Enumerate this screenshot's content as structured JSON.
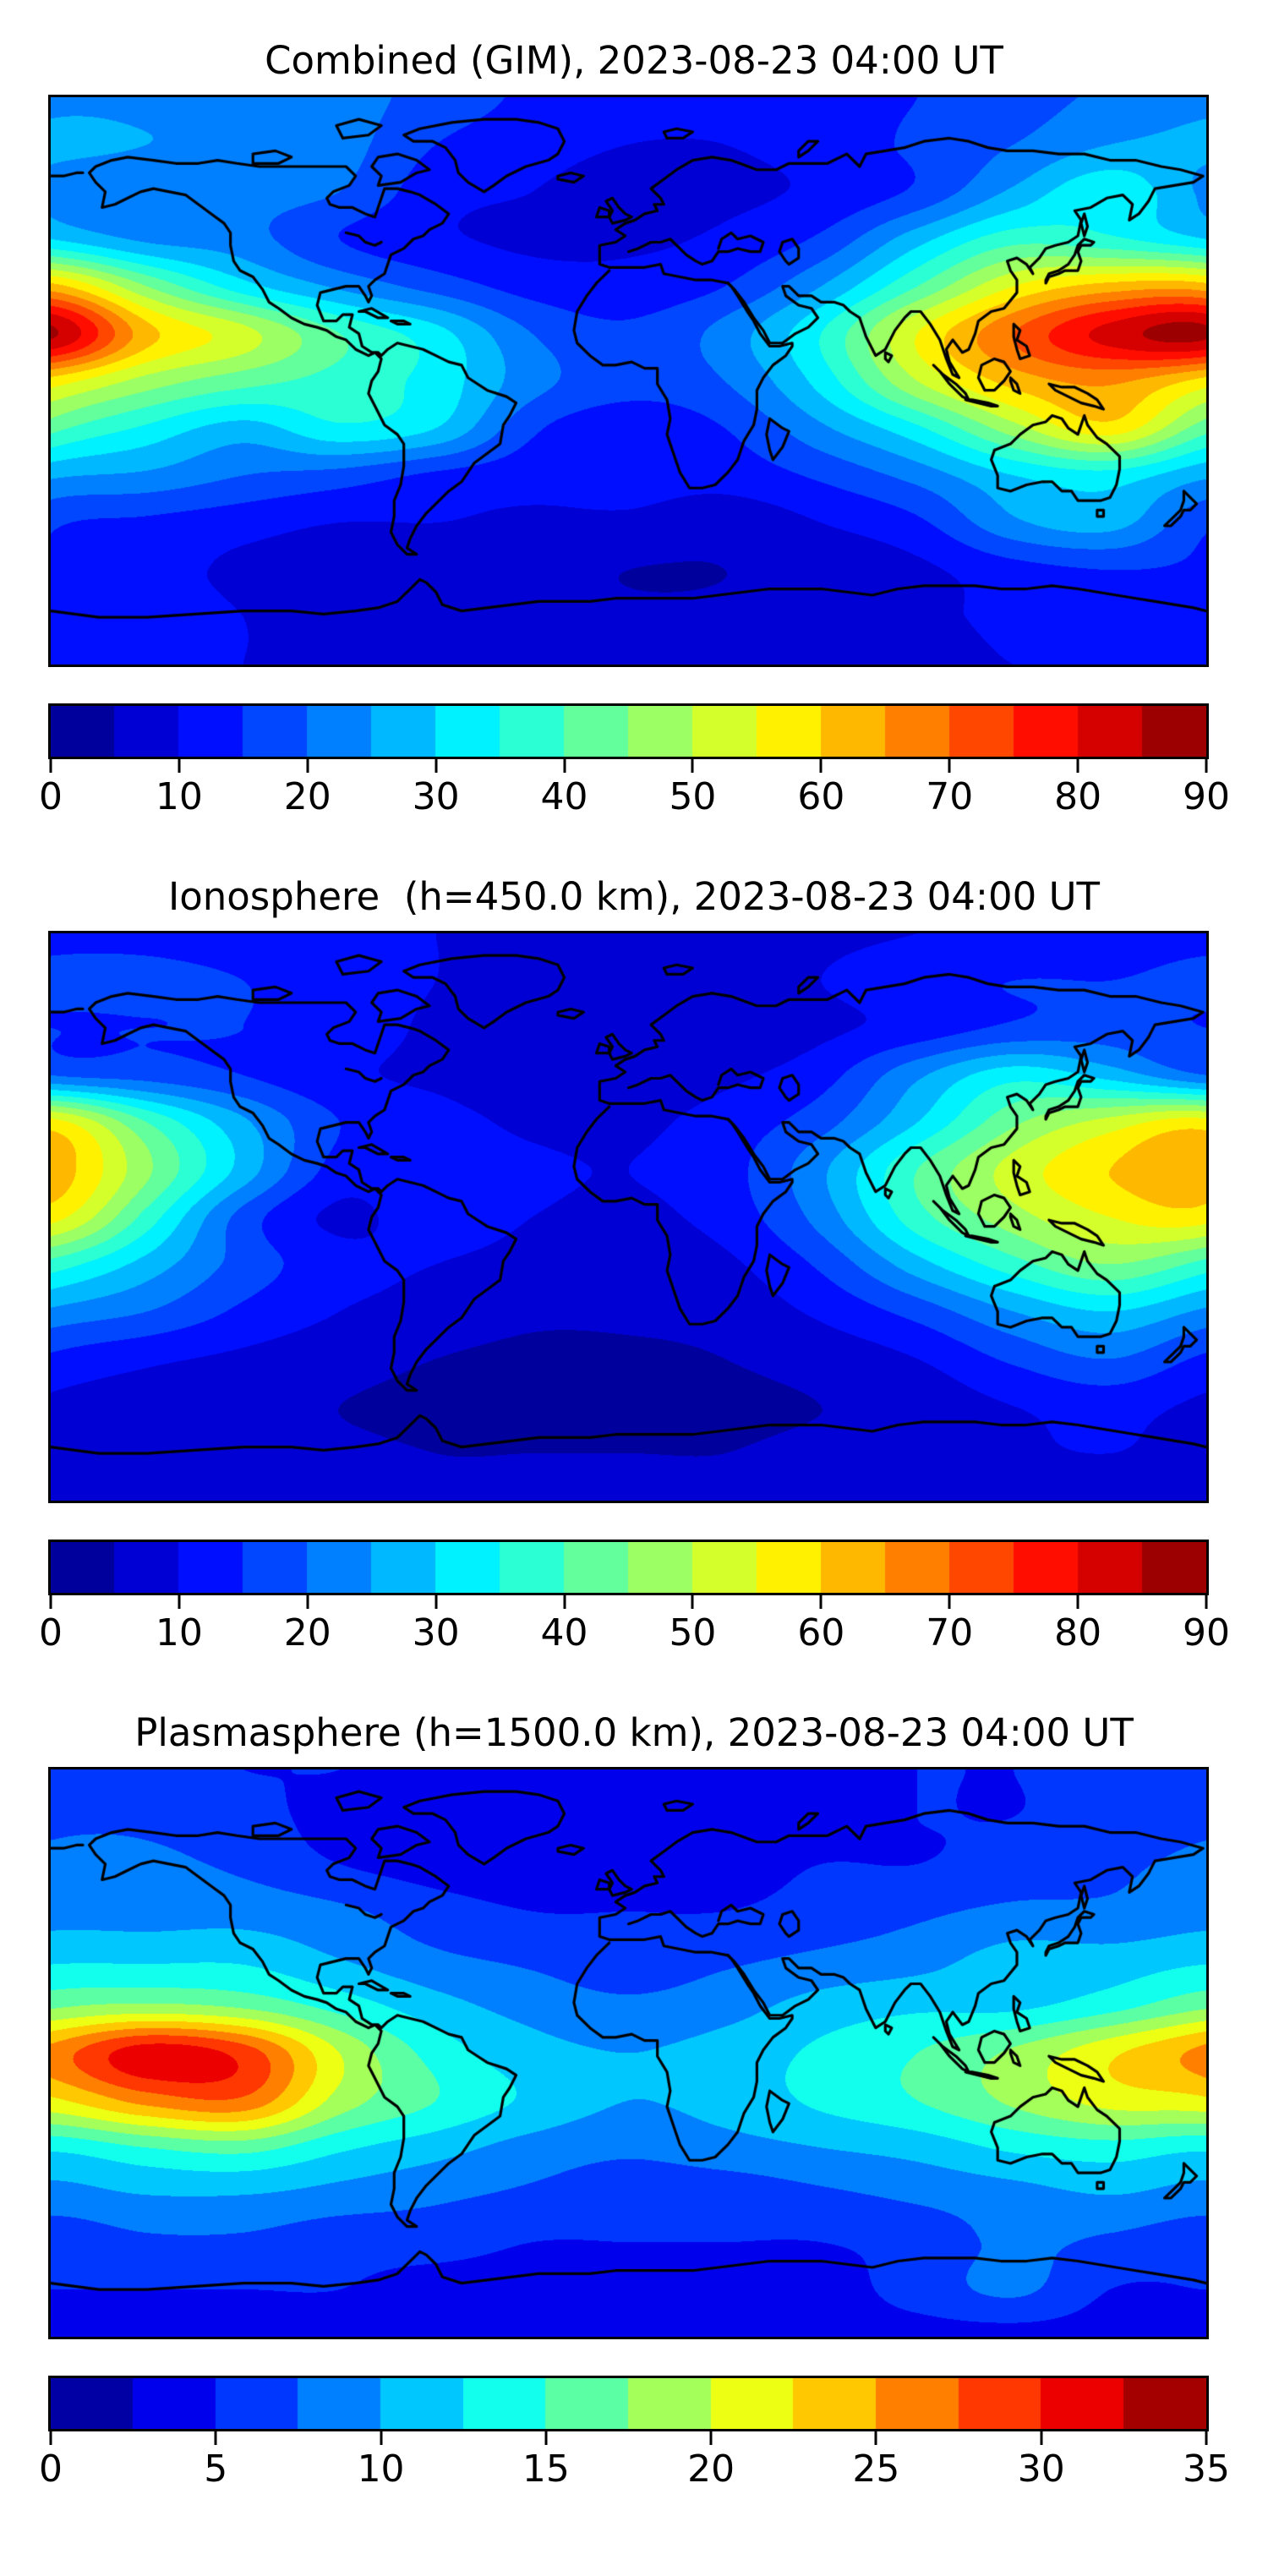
{
  "figure": {
    "background_color": "#ffffff",
    "coastline_color": "#000000",
    "colormap": "jet"
  },
  "chart_data": {
    "type": "heatmap",
    "projection": "equirectangular",
    "lon_range": [
      -180,
      180
    ],
    "lat_range": [
      -90,
      90
    ],
    "grid_on": false,
    "panels": [
      {
        "title": "Combined (GIM), 2023-08-23 04:00 UT",
        "vmin": 0,
        "vmax": 90,
        "level_step": 5,
        "colorbar_ticks": [
          0,
          10,
          20,
          30,
          40,
          50,
          60,
          70,
          80,
          90
        ],
        "grid_lons": [
          -180,
          -150,
          -120,
          -90,
          -60,
          -30,
          0,
          30,
          60,
          90,
          120,
          150,
          180
        ],
        "grid_lats": [
          90,
          75,
          60,
          45,
          30,
          15,
          0,
          -15,
          -30,
          -45,
          -60,
          -75,
          -90
        ],
        "tec_values": [
          [
            24,
            24,
            23,
            22,
            18,
            14,
            12,
            12,
            13,
            15,
            18,
            21,
            24
          ],
          [
            26,
            25,
            24,
            22,
            15,
            12,
            10,
            10,
            12,
            16,
            20,
            25,
            26
          ],
          [
            24,
            22,
            22,
            20,
            12,
            10,
            8,
            9,
            11,
            16,
            26,
            34,
            24
          ],
          [
            30,
            24,
            22,
            15,
            11,
            9,
            9,
            11,
            16,
            28,
            38,
            36,
            30
          ],
          [
            62,
            45,
            32,
            24,
            18,
            13,
            12,
            15,
            25,
            40,
            55,
            62,
            62
          ],
          [
            86,
            62,
            52,
            40,
            32,
            20,
            16,
            22,
            35,
            55,
            70,
            82,
            86
          ],
          [
            58,
            48,
            42,
            38,
            33,
            22,
            17,
            20,
            32,
            50,
            62,
            66,
            58
          ],
          [
            42,
            34,
            28,
            34,
            30,
            16,
            12,
            15,
            24,
            34,
            48,
            58,
            42
          ],
          [
            26,
            24,
            20,
            18,
            14,
            12,
            12,
            12,
            16,
            22,
            30,
            33,
            26
          ],
          [
            16,
            14,
            12,
            10,
            10,
            9,
            9,
            7,
            10,
            14,
            24,
            27,
            16
          ],
          [
            14,
            12,
            9,
            8,
            8,
            7,
            5,
            5,
            7,
            9,
            13,
            15,
            14
          ],
          [
            12,
            13,
            10,
            9,
            8,
            7,
            6,
            6,
            7,
            9,
            11,
            13,
            12
          ],
          [
            10,
            10,
            10,
            9,
            8,
            7,
            7,
            7,
            8,
            9,
            10,
            10,
            10
          ]
        ]
      },
      {
        "title": "Ionosphere  (h=450.0 km), 2023-08-23 04:00 UT",
        "vmin": 0,
        "vmax": 90,
        "level_step": 5,
        "colorbar_ticks": [
          0,
          10,
          20,
          30,
          40,
          50,
          60,
          70,
          80,
          90
        ],
        "grid_lons": [
          -180,
          -150,
          -120,
          -90,
          -60,
          -30,
          0,
          30,
          60,
          90,
          120,
          150,
          180
        ],
        "grid_lats": [
          90,
          75,
          60,
          45,
          30,
          15,
          0,
          -15,
          -30,
          -45,
          -60,
          -75,
          -90
        ],
        "tec_values": [
          [
            14,
            14,
            13,
            12,
            10,
            9,
            8,
            8,
            9,
            10,
            11,
            13,
            14
          ],
          [
            16,
            16,
            15,
            13,
            10,
            8,
            7,
            8,
            10,
            13,
            15,
            15,
            16
          ],
          [
            15,
            15,
            15,
            13,
            9,
            7,
            6,
            7,
            9,
            12,
            16,
            17,
            15
          ],
          [
            20,
            18,
            15,
            11,
            9,
            7,
            7,
            9,
            13,
            24,
            33,
            28,
            20
          ],
          [
            57,
            40,
            26,
            15,
            12,
            9,
            9,
            12,
            18,
            30,
            44,
            52,
            57
          ],
          [
            63,
            46,
            28,
            13,
            14,
            11,
            10,
            13,
            24,
            40,
            52,
            60,
            63
          ],
          [
            57,
            38,
            18,
            9,
            13,
            10,
            9,
            12,
            22,
            38,
            48,
            55,
            57
          ],
          [
            38,
            28,
            18,
            12,
            10,
            8,
            7,
            9,
            16,
            28,
            38,
            45,
            38
          ],
          [
            24,
            20,
            14,
            10,
            8,
            6,
            6,
            7,
            11,
            17,
            25,
            30,
            24
          ],
          [
            14,
            11,
            9,
            7,
            5,
            4,
            4,
            5,
            7,
            10,
            16,
            20,
            14
          ],
          [
            9,
            8,
            7,
            5,
            4,
            4,
            3,
            4,
            5,
            7,
            10,
            12,
            9
          ],
          [
            8,
            8,
            7,
            6,
            5,
            5,
            5,
            5,
            6,
            7,
            9,
            10,
            8
          ],
          [
            7,
            7,
            7,
            7,
            6,
            6,
            6,
            6,
            6,
            7,
            7,
            7,
            7
          ]
        ]
      },
      {
        "title": "Plasmasphere (h=1500.0 km), 2023-08-23 04:00 UT",
        "vmin": 0,
        "vmax": 35,
        "level_step": 2.5,
        "colorbar_ticks": [
          0,
          5,
          10,
          15,
          20,
          25,
          30,
          35
        ],
        "grid_lons": [
          -180,
          -150,
          -120,
          -90,
          -60,
          -30,
          0,
          30,
          60,
          90,
          120,
          150,
          180
        ],
        "grid_lats": [
          90,
          75,
          60,
          45,
          30,
          15,
          0,
          -15,
          -30,
          -45,
          -60,
          -75,
          -90
        ],
        "tec_values": [
          [
            6,
            6,
            5,
            5,
            4,
            4,
            4,
            4,
            4,
            5,
            5,
            6,
            6
          ],
          [
            7,
            7,
            6,
            4,
            3,
            3,
            4,
            4,
            4,
            5,
            5,
            6,
            7
          ],
          [
            8,
            8,
            7,
            5,
            4,
            4,
            4,
            4,
            5,
            5,
            6,
            7,
            8
          ],
          [
            9,
            9,
            9,
            8,
            6,
            5,
            5,
            5,
            6,
            7,
            8,
            8,
            9
          ],
          [
            12,
            12,
            12,
            10,
            8,
            7,
            6,
            7,
            8,
            9,
            11,
            11,
            12
          ],
          [
            17,
            18,
            17,
            14,
            11,
            9,
            8,
            9,
            11,
            12,
            12,
            14,
            17
          ],
          [
            26,
            31.5,
            29,
            20,
            14,
            11,
            10,
            11,
            13,
            15,
            18,
            22,
            26
          ],
          [
            22,
            26,
            27,
            19,
            15,
            12,
            10,
            11,
            13,
            15,
            18,
            21,
            22
          ],
          [
            13,
            15,
            16,
            13,
            11,
            9,
            8,
            9,
            10,
            11,
            13,
            14,
            13
          ],
          [
            9,
            10,
            10,
            9,
            8,
            7,
            6,
            6,
            7,
            8,
            9,
            10,
            9
          ],
          [
            6,
            7,
            7,
            6,
            6,
            5,
            5,
            5,
            5,
            6,
            8,
            7,
            6
          ],
          [
            5,
            5,
            5,
            5,
            4,
            4,
            4,
            4,
            4,
            6,
            8,
            5,
            5
          ],
          [
            4,
            4,
            4,
            4,
            4,
            4,
            4,
            4,
            4,
            4,
            4,
            4,
            4
          ]
        ]
      }
    ]
  }
}
